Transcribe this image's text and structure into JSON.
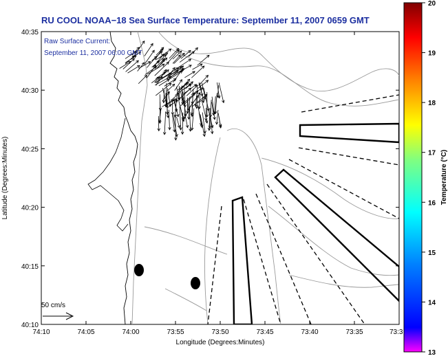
{
  "title": "RU COOL  NOAA−18  Sea Surface Temperature:  September 11, 2007 0659 GMT",
  "annotation": {
    "line1": "Raw Surface Current:",
    "line2": "September 11, 2007 06:00 GMT",
    "color": "#1c2fa0"
  },
  "axes": {
    "xlabel": "Longitude (Degrees:Minutes)",
    "ylabel": "Latitude (Degrees:Minutes)",
    "x_ticks": [
      "74:10",
      "74:05",
      "74:00",
      "73:55",
      "73:50",
      "73:45",
      "73:40",
      "73:35",
      "73:3"
    ],
    "y_ticks": [
      "40:10",
      "40:15",
      "40:20",
      "40:25",
      "40:30",
      "40:35"
    ]
  },
  "scale": {
    "label": "50 cm/s"
  },
  "colorbar": {
    "label": "Temperature (°C)",
    "min": 13,
    "max": 20,
    "tick_labels": [
      "20",
      "19",
      "18",
      "17",
      "16",
      "15",
      "14",
      "13"
    ],
    "colors": [
      "#800000",
      "#ff0000",
      "#ff8000",
      "#ffff00",
      "#80ff80",
      "#00ffff",
      "#0080ff",
      "#0000ff",
      "#ff00ff"
    ]
  }
}
